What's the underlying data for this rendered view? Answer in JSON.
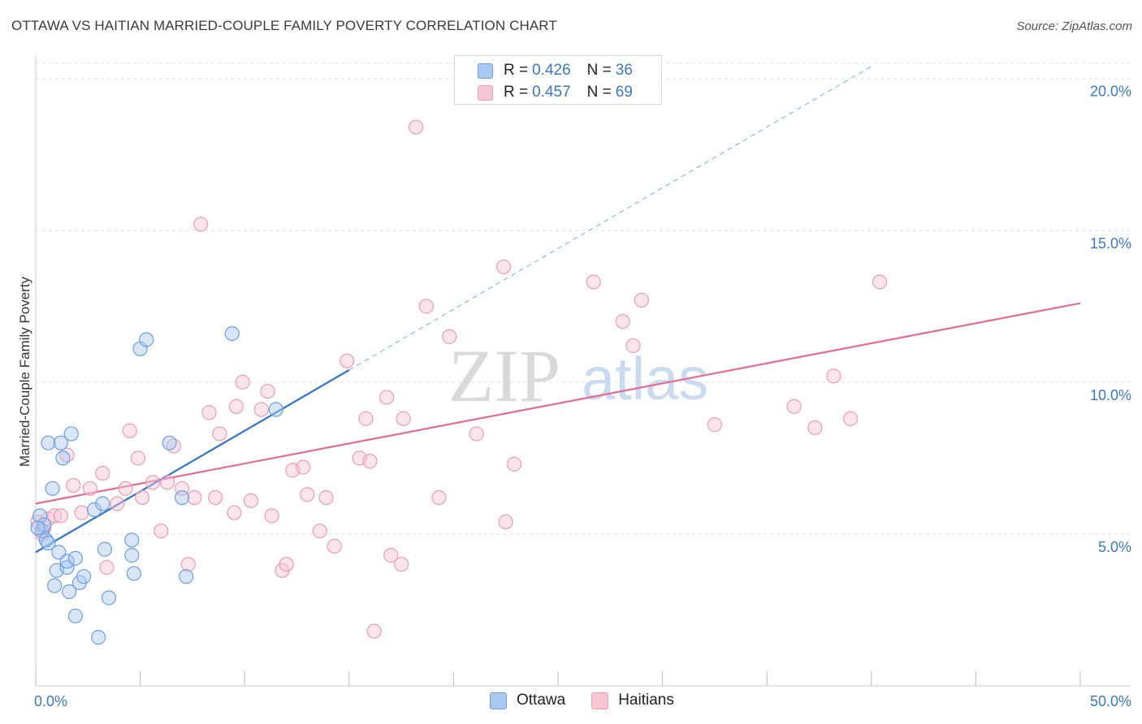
{
  "header": {
    "title": "OTTAWA VS HAITIAN MARRIED-COUPLE FAMILY POVERTY CORRELATION CHART",
    "source": "Source: ZipAtlas.com"
  },
  "watermark": {
    "zip": "ZIP",
    "atlas": "atlas"
  },
  "legend_stats": [
    {
      "r_label": "R = ",
      "r_value": "0.426",
      "n_label": "N = ",
      "n_value": "36",
      "color": "#a9c8f0",
      "border": "#6a9fe0"
    },
    {
      "r_label": "R = ",
      "r_value": "0.457",
      "n_label": "N = ",
      "n_value": "69",
      "color": "#f7c6d4",
      "border": "#ee9ab4"
    }
  ],
  "bottom_legend": [
    {
      "label": "Ottawa",
      "color": "#a9c8f0",
      "border": "#6a9fe0"
    },
    {
      "label": "Haitians",
      "color": "#f7c6d4",
      "border": "#ee9ab4"
    }
  ],
  "chart_data": {
    "type": "scatter",
    "title": "OTTAWA VS HAITIAN MARRIED-COUPLE FAMILY POVERTY CORRELATION CHART",
    "xlabel": "",
    "ylabel": "Married-Couple Family Poverty",
    "xlim": [
      0,
      50
    ],
    "ylim": [
      0,
      20.5
    ],
    "x_tick_labels": [
      "0.0%",
      "50.0%"
    ],
    "y_ticks": [
      5,
      10,
      15,
      20
    ],
    "y_tick_labels": [
      "5.0%",
      "10.0%",
      "15.0%",
      "20.0%"
    ],
    "grid": true,
    "series": [
      {
        "name": "Ottawa",
        "color": "#6a9fe0",
        "fill": "#a9c8f0",
        "points": [
          [
            0.2,
            5.6
          ],
          [
            0.3,
            5.1
          ],
          [
            0.4,
            5.3
          ],
          [
            0.5,
            4.8
          ],
          [
            0.6,
            4.7
          ],
          [
            0.6,
            8.0
          ],
          [
            0.8,
            6.5
          ],
          [
            0.9,
            3.3
          ],
          [
            1.0,
            3.8
          ],
          [
            1.1,
            4.4
          ],
          [
            1.2,
            8.0
          ],
          [
            1.3,
            7.5
          ],
          [
            1.5,
            3.9
          ],
          [
            1.5,
            4.1
          ],
          [
            1.6,
            3.1
          ],
          [
            1.7,
            8.3
          ],
          [
            1.9,
            4.2
          ],
          [
            1.9,
            2.3
          ],
          [
            2.1,
            3.4
          ],
          [
            2.3,
            3.6
          ],
          [
            2.8,
            5.8
          ],
          [
            3.0,
            1.6
          ],
          [
            3.2,
            6.0
          ],
          [
            3.3,
            4.5
          ],
          [
            3.5,
            2.9
          ],
          [
            4.6,
            4.8
          ],
          [
            4.6,
            4.3
          ],
          [
            4.7,
            3.7
          ],
          [
            5.0,
            11.1
          ],
          [
            5.3,
            11.4
          ],
          [
            6.4,
            8.0
          ],
          [
            7.0,
            6.2
          ],
          [
            7.2,
            3.6
          ],
          [
            9.4,
            11.6
          ],
          [
            11.5,
            9.1
          ],
          [
            0.1,
            5.2
          ]
        ],
        "trend": {
          "x1": 0,
          "y1": 4.4,
          "x2": 15.0,
          "y2": 10.4,
          "dashed_to_x": 40.0,
          "dashed_to_y": 20.4
        }
      },
      {
        "name": "Haitians",
        "color": "#ee9ab4",
        "fill": "#f7c6d4",
        "points": [
          [
            0.1,
            5.4
          ],
          [
            0.3,
            5.0
          ],
          [
            0.4,
            5.2
          ],
          [
            0.6,
            5.5
          ],
          [
            0.9,
            5.6
          ],
          [
            1.2,
            5.6
          ],
          [
            1.5,
            7.6
          ],
          [
            1.8,
            6.6
          ],
          [
            2.2,
            5.7
          ],
          [
            2.6,
            6.5
          ],
          [
            3.2,
            7.0
          ],
          [
            3.4,
            3.9
          ],
          [
            3.9,
            6.0
          ],
          [
            4.3,
            6.5
          ],
          [
            4.5,
            8.4
          ],
          [
            4.9,
            7.5
          ],
          [
            5.1,
            6.2
          ],
          [
            5.6,
            6.7
          ],
          [
            6.0,
            5.1
          ],
          [
            6.3,
            6.7
          ],
          [
            6.6,
            7.9
          ],
          [
            7.0,
            6.5
          ],
          [
            7.3,
            4.0
          ],
          [
            7.6,
            6.2
          ],
          [
            7.9,
            15.2
          ],
          [
            8.3,
            9.0
          ],
          [
            8.6,
            6.2
          ],
          [
            8.8,
            8.3
          ],
          [
            9.5,
            5.7
          ],
          [
            9.6,
            9.2
          ],
          [
            9.9,
            10.0
          ],
          [
            10.3,
            6.1
          ],
          [
            10.8,
            9.1
          ],
          [
            11.1,
            9.7
          ],
          [
            11.3,
            5.6
          ],
          [
            11.8,
            3.8
          ],
          [
            12.0,
            4.0
          ],
          [
            12.3,
            7.1
          ],
          [
            12.8,
            7.2
          ],
          [
            13.0,
            6.3
          ],
          [
            13.6,
            5.1
          ],
          [
            13.9,
            6.2
          ],
          [
            14.3,
            4.6
          ],
          [
            14.9,
            10.7
          ],
          [
            15.5,
            7.5
          ],
          [
            15.8,
            8.8
          ],
          [
            16.0,
            7.4
          ],
          [
            16.2,
            1.8
          ],
          [
            16.8,
            9.5
          ],
          [
            17.0,
            4.3
          ],
          [
            17.5,
            4.0
          ],
          [
            17.6,
            8.8
          ],
          [
            18.2,
            18.4
          ],
          [
            18.7,
            12.5
          ],
          [
            19.3,
            6.2
          ],
          [
            19.8,
            11.5
          ],
          [
            21.1,
            8.3
          ],
          [
            22.4,
            13.8
          ],
          [
            22.5,
            5.4
          ],
          [
            22.9,
            7.3
          ],
          [
            26.7,
            13.3
          ],
          [
            28.1,
            12.0
          ],
          [
            28.6,
            11.2
          ],
          [
            29.0,
            12.7
          ],
          [
            32.5,
            8.6
          ],
          [
            36.3,
            9.2
          ],
          [
            37.3,
            8.5
          ],
          [
            38.2,
            10.2
          ],
          [
            39.0,
            8.8
          ],
          [
            40.4,
            13.3
          ]
        ],
        "trend": {
          "x1": 0,
          "y1": 6.0,
          "x2": 50.0,
          "y2": 12.6
        }
      }
    ]
  }
}
